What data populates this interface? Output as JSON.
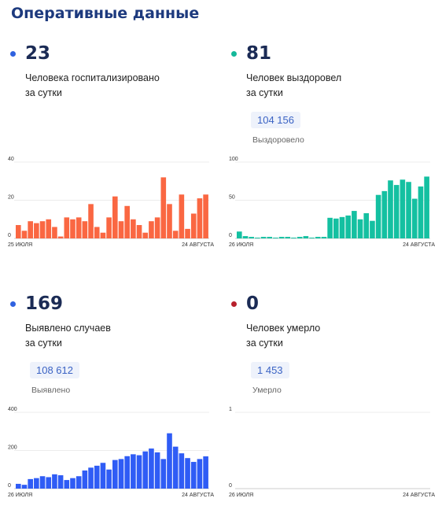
{
  "page": {
    "title": "Оперативные данные"
  },
  "panels": {
    "hosp": {
      "value": "23",
      "caption_line1": "Человека госпитализировано",
      "caption_line2": "за сутки",
      "dot_color": "#2f62e0"
    },
    "recovered": {
      "value": "81",
      "caption_line1": "Человек выздоровел",
      "caption_line2": "за сутки",
      "total": "104 156",
      "total_label": "Выздоровело",
      "dot_color": "#14b89a"
    },
    "cases": {
      "value": "169",
      "caption_line1": "Выявлено случаев",
      "caption_line2": "за сутки",
      "total": "108 612",
      "total_label": "Выявлено",
      "dot_color": "#2f62e0"
    },
    "deaths": {
      "value": "0",
      "caption_line1": "Человек умерло",
      "caption_line2": "за сутки",
      "total": "1 453",
      "total_label": "Умерло",
      "dot_color": "#b7202b"
    }
  },
  "chart_data": [
    {
      "type": "bar",
      "id": "hosp",
      "color": "#fa6742",
      "ylim": [
        0,
        40
      ],
      "yticks": [
        0,
        20,
        40
      ],
      "x_start_label": "25 ИЮЛЯ",
      "x_end_label": "24 АВГУСТА",
      "values": [
        7,
        4,
        9,
        8,
        9,
        10,
        6,
        1,
        11,
        10,
        11,
        9,
        18,
        6,
        3,
        11,
        22,
        9,
        17,
        10,
        7,
        3,
        9,
        11,
        32,
        18,
        4,
        23,
        5,
        13,
        21,
        23
      ]
    },
    {
      "type": "bar",
      "id": "recovered",
      "color": "#14c0a1",
      "ylim": [
        0,
        100
      ],
      "yticks": [
        0,
        50,
        100
      ],
      "x_start_label": "26 ИЮЛЯ",
      "x_end_label": "24 АВГУСТА",
      "values": [
        9,
        3,
        2,
        1,
        2,
        2,
        1,
        2,
        2,
        1,
        2,
        3,
        1,
        2,
        2,
        27,
        26,
        28,
        30,
        36,
        25,
        33,
        23,
        57,
        62,
        76,
        70,
        77,
        74,
        52,
        68,
        81
      ]
    },
    {
      "type": "bar",
      "id": "cases",
      "color": "#2f5cf5",
      "ylim": [
        0,
        400
      ],
      "yticks": [
        0,
        200,
        400
      ],
      "x_start_label": "26 ИЮЛЯ",
      "x_end_label": "24 АВГУСТА",
      "values": [
        25,
        20,
        50,
        55,
        65,
        60,
        75,
        70,
        45,
        55,
        65,
        95,
        110,
        120,
        135,
        100,
        150,
        155,
        170,
        180,
        175,
        195,
        210,
        190,
        155,
        290,
        220,
        185,
        160,
        140,
        155,
        169
      ]
    },
    {
      "type": "bar",
      "id": "deaths",
      "color": "#b7202b",
      "ylim": [
        0,
        1
      ],
      "yticks": [
        0,
        1
      ],
      "x_start_label": "26 ИЮЛЯ",
      "x_end_label": "24 АВГУСТА",
      "values": [
        0,
        0,
        0,
        0,
        0,
        0,
        0,
        0,
        0,
        0,
        0,
        0,
        0,
        0,
        0,
        0,
        0,
        0,
        0,
        0,
        0,
        0,
        0,
        0,
        0,
        0,
        0,
        0,
        0,
        0,
        0,
        0
      ]
    }
  ]
}
